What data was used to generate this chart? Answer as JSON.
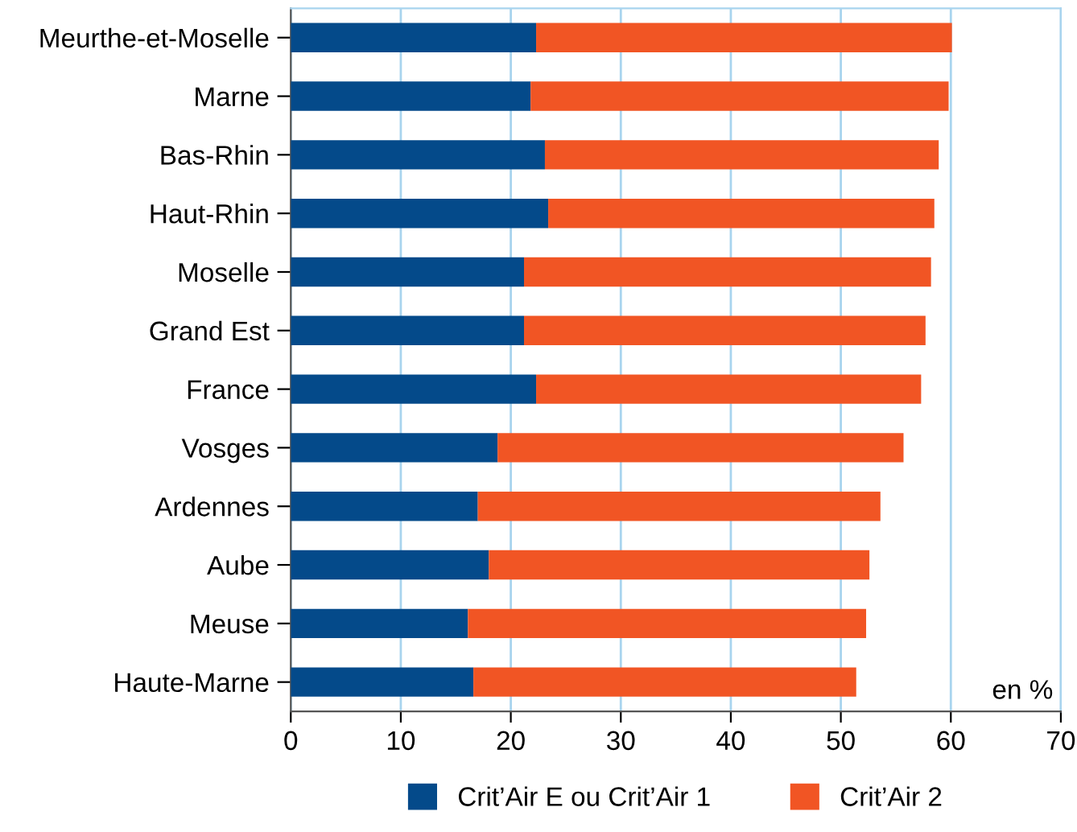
{
  "chart_data": {
    "type": "bar",
    "orientation": "horizontal",
    "stacked": true,
    "categories": [
      "Meurthe-et-Moselle",
      "Marne",
      "Bas-Rhin",
      "Haut-Rhin",
      "Moselle",
      "Grand Est",
      "France",
      "Vosges",
      "Ardennes",
      "Aube",
      "Meuse",
      "Haute-Marne"
    ],
    "series": [
      {
        "name": "Crit’Air E ou Crit’Air 1",
        "color": "#044a8a",
        "values": [
          22.3,
          21.8,
          23.1,
          23.4,
          21.2,
          21.2,
          22.3,
          18.8,
          17.0,
          18.0,
          16.1,
          16.6
        ]
      },
      {
        "name": "Crit’Air 2",
        "color": "#f15524",
        "values": [
          37.8,
          38.0,
          35.8,
          35.1,
          37.0,
          36.5,
          35.0,
          36.9,
          36.6,
          34.6,
          36.2,
          34.8
        ]
      }
    ],
    "xlabel": "en %",
    "xlim": [
      0,
      70
    ],
    "xticks": [
      0,
      10,
      20,
      30,
      40,
      50,
      60,
      70
    ],
    "grid": "x",
    "legend": "bottom"
  }
}
